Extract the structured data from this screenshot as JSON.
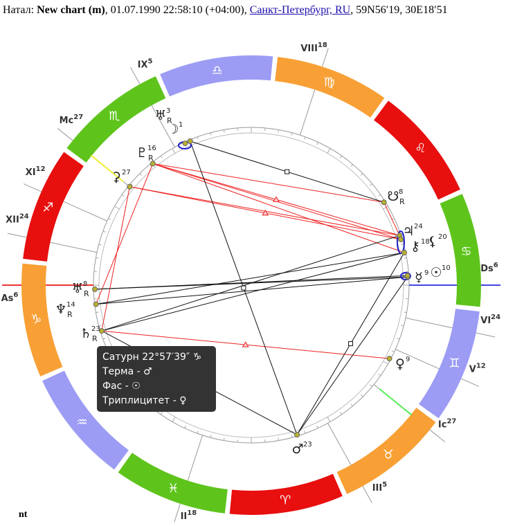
{
  "header": {
    "prefix": "Натал:",
    "chart_name": "New chart (m)",
    "details": ", 01.07.1990 22:58:10 (+04:00),",
    "place": "Санкт-Петербург, RU",
    "coords": ", 59N56′19, 30E18′51"
  },
  "signs": [
    {
      "glyph": "♑",
      "color": "#f8a035"
    },
    {
      "glyph": "♒",
      "color": "#9c9cf5"
    },
    {
      "glyph": "♓",
      "color": "#5ec41c"
    },
    {
      "glyph": "♈",
      "color": "#e80f0f"
    },
    {
      "glyph": "♉",
      "color": "#f8a035"
    },
    {
      "glyph": "♊",
      "color": "#9c9cf5"
    },
    {
      "glyph": "♋",
      "color": "#5ec41c"
    },
    {
      "glyph": "♌",
      "color": "#e80f0f"
    },
    {
      "glyph": "♍",
      "color": "#f8a035"
    },
    {
      "glyph": "♎",
      "color": "#9c9cf5"
    },
    {
      "glyph": "♏",
      "color": "#5ec41c"
    },
    {
      "glyph": "♐",
      "color": "#e80f0f"
    }
  ],
  "houses": [
    {
      "label": "As",
      "degree": 6
    },
    {
      "label": "II",
      "degree": 18
    },
    {
      "label": "III",
      "degree": 5
    },
    {
      "label": "Ic",
      "degree": 27
    },
    {
      "label": "V",
      "degree": 12
    },
    {
      "label": "VI",
      "degree": 24
    },
    {
      "label": "Ds",
      "degree": 6
    },
    {
      "label": "VIII",
      "degree": 18
    },
    {
      "label": "IX",
      "degree": 5
    },
    {
      "label": "Mc",
      "degree": 27
    },
    {
      "label": "XI",
      "degree": 12
    },
    {
      "label": "XII",
      "degree": 24
    }
  ],
  "planets": [
    {
      "glyph": "♅",
      "degree": 3,
      "retro": "R"
    },
    {
      "glyph": "☽",
      "degree": 1
    },
    {
      "glyph": "♇",
      "degree": 16,
      "retro": "R"
    },
    {
      "glyph": "⚳",
      "degree": 27
    },
    {
      "glyph": "♅",
      "degree": 8,
      "retro": "R"
    },
    {
      "glyph": "♆",
      "degree": 14,
      "retro": "R"
    },
    {
      "glyph": "♄",
      "degree": 23,
      "retro": "R"
    },
    {
      "glyph": "♂",
      "degree": 23
    },
    {
      "glyph": "♀",
      "degree": 9
    },
    {
      "glyph": "☿",
      "degree": 9
    },
    {
      "glyph": "☉",
      "degree": 10
    },
    {
      "glyph": "⚷",
      "degree": 18
    },
    {
      "glyph": "♃",
      "degree": 24
    },
    {
      "glyph": "⚸",
      "degree": 20
    },
    {
      "glyph": "☋",
      "degree": 8,
      "retro": "R"
    }
  ],
  "tooltip": {
    "title": "Сатурн 22°57′39″ ♑",
    "lines": [
      "Терма - ♂",
      "Фас - ☉",
      "Триплицитет - ♀"
    ]
  },
  "footer": "nt"
}
